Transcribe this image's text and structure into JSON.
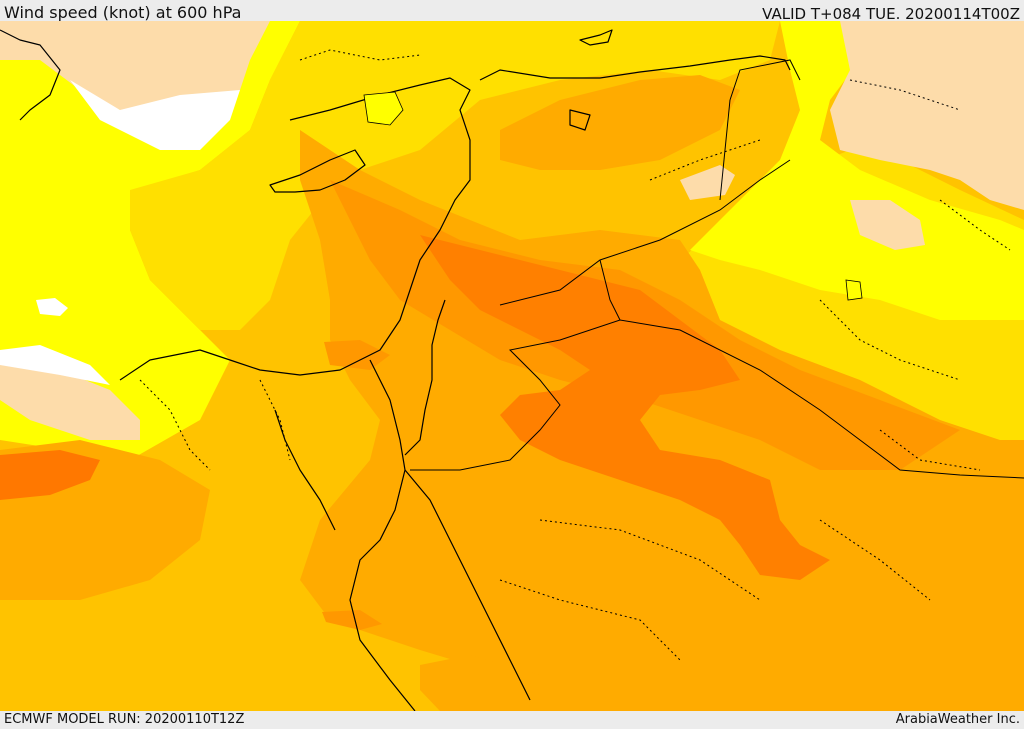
{
  "header": {
    "title": "Wind speed (knot) at 600 hPa",
    "valid_time": "VALID T+084 TUE. 20200114T00Z"
  },
  "footer": {
    "model_run": "ECMWF MODEL RUN: 20200110T12Z",
    "credit": "ArabiaWeather Inc."
  },
  "colors": {
    "land_cream": "#fddcaa",
    "no_data_white": "#ffffff",
    "yellow": "#ffff00",
    "gold": "#ffe000",
    "amber": "#ffc300",
    "orange_light": "#ffab00",
    "orange": "#ff9800",
    "orange_dark": "#ff8000",
    "orange_darker": "#ff7800",
    "border_black": "#000000"
  }
}
